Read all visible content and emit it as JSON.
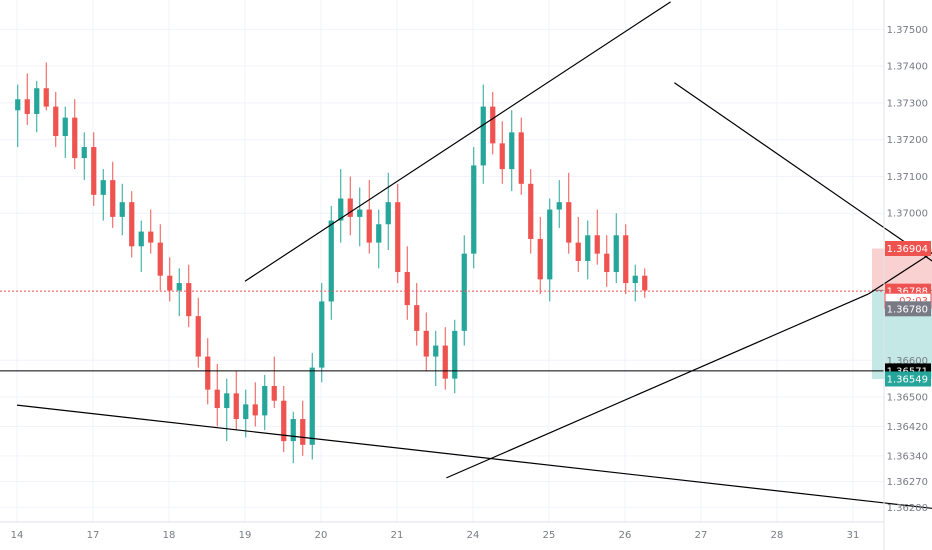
{
  "chart_data": {
    "type": "candlestick",
    "title": "",
    "grid": true,
    "colors": {
      "up": "#26a69a",
      "down": "#ef5350",
      "drawing": "#000000",
      "stop_zone": "#f8c9c8",
      "target_zone": "#b9e4e0",
      "price_line": "#ef5350",
      "axis_text": "#787b86"
    },
    "y_axis": {
      "side": "right",
      "range": [
        1.3616,
        1.3758
      ],
      "ticks": [
        "1.37500",
        "1.37400",
        "1.37300",
        "1.37200",
        "1.37100",
        "1.37000",
        "1.36600",
        "1.36500",
        "1.36420",
        "1.36340",
        "1.36270",
        "1.36200"
      ]
    },
    "x_axis": {
      "ticks": [
        "14",
        "17",
        "18",
        "19",
        "20",
        "21",
        "24",
        "25",
        "26",
        "27",
        "28",
        "31"
      ]
    },
    "price_tags": [
      {
        "label": "1.36904",
        "value": 1.36904,
        "bg": "#ef5350",
        "fg": "#ffffff"
      },
      {
        "label": "1.36788",
        "value": 1.36788,
        "bg": "#ef5350",
        "fg": "#ffffff"
      },
      {
        "label": "02:03",
        "value": 1.36762,
        "bg": "#ffffff",
        "fg": "#ef5350",
        "border": "#ef5350"
      },
      {
        "label": "1.36780",
        "value": 1.3674,
        "bg": "#787b86",
        "fg": "#ffffff"
      },
      {
        "label": "1.36571",
        "value": 1.36571,
        "bg": "#000000",
        "fg": "#ffffff"
      },
      {
        "label": "1.36549",
        "value": 1.36549,
        "bg": "#26a69a",
        "fg": "#ffffff"
      }
    ],
    "position": {
      "type": "short",
      "entry": 1.3679,
      "stop": 1.36904,
      "target": 1.36549,
      "start_date_index": 11.25,
      "end_date_index": 14.45
    },
    "horizontal_line": 1.36571,
    "current_price": 1.36788,
    "trendlines": [
      {
        "from": [
          3.0,
          1.36815
        ],
        "to": [
          8.6,
          1.37575
        ]
      },
      {
        "from": [
          5.65,
          1.3628
        ],
        "to": [
          11.2,
          1.3678
        ]
      },
      {
        "from": [
          11.2,
          1.3678
        ],
        "to": [
          14.0,
          1.37155
        ]
      },
      {
        "from": [
          8.65,
          1.37355
        ],
        "to": [
          13.98,
          1.36593
        ]
      },
      {
        "from": [
          0.0,
          1.36478
        ],
        "to": [
          12.35,
          1.3619
        ]
      }
    ],
    "series": [
      {
        "date": "14",
        "ohlc": [
          [
            1.3728,
            1.3735,
            1.3718,
            1.3731
          ],
          [
            1.3731,
            1.3738,
            1.3724,
            1.3727
          ],
          [
            1.3727,
            1.3736,
            1.3722,
            1.3734
          ],
          [
            1.3734,
            1.3741,
            1.3728,
            1.3729
          ],
          [
            1.3729,
            1.3733,
            1.3718,
            1.3721
          ],
          [
            1.3721,
            1.3729,
            1.3715,
            1.3726
          ],
          [
            1.3726,
            1.3731,
            1.3712,
            1.3715
          ],
          [
            1.3715,
            1.3722,
            1.3709,
            1.3718
          ]
        ]
      },
      {
        "date": "17",
        "ohlc": [
          [
            1.3718,
            1.3722,
            1.3702,
            1.3705
          ],
          [
            1.3705,
            1.3712,
            1.3698,
            1.3709
          ],
          [
            1.3709,
            1.3714,
            1.3696,
            1.3699
          ],
          [
            1.3699,
            1.3708,
            1.3694,
            1.3703
          ],
          [
            1.3703,
            1.3706,
            1.3688,
            1.3691
          ],
          [
            1.3691,
            1.3698,
            1.3684,
            1.3695
          ],
          [
            1.3695,
            1.3701,
            1.3689,
            1.3692
          ],
          [
            1.3692,
            1.3697,
            1.3679,
            1.3683
          ]
        ]
      },
      {
        "date": "18",
        "ohlc": [
          [
            1.3683,
            1.3688,
            1.3676,
            1.3679
          ],
          [
            1.3679,
            1.3685,
            1.3672,
            1.3681
          ],
          [
            1.3681,
            1.3686,
            1.3669,
            1.3672
          ],
          [
            1.3672,
            1.3677,
            1.3658,
            1.3661
          ],
          [
            1.3661,
            1.3666,
            1.3648,
            1.3652
          ],
          [
            1.3652,
            1.3659,
            1.3642,
            1.3647
          ],
          [
            1.3647,
            1.3655,
            1.3638,
            1.3651
          ],
          [
            1.3651,
            1.3657,
            1.3641,
            1.3644
          ]
        ]
      },
      {
        "date": "19",
        "ohlc": [
          [
            1.3644,
            1.3652,
            1.3639,
            1.3648
          ],
          [
            1.3648,
            1.3654,
            1.3642,
            1.3645
          ],
          [
            1.3645,
            1.3656,
            1.3641,
            1.3653
          ],
          [
            1.3653,
            1.3661,
            1.3647,
            1.3649
          ],
          [
            1.3649,
            1.3653,
            1.3635,
            1.3638
          ],
          [
            1.3638,
            1.3646,
            1.3632,
            1.3644
          ],
          [
            1.3644,
            1.3649,
            1.3634,
            1.3637
          ],
          [
            1.3637,
            1.3662,
            1.3633,
            1.3658
          ]
        ]
      },
      {
        "date": "20",
        "ohlc": [
          [
            1.3658,
            1.3681,
            1.3654,
            1.3676
          ],
          [
            1.3676,
            1.3702,
            1.3671,
            1.3698
          ],
          [
            1.3698,
            1.3712,
            1.3692,
            1.3704
          ],
          [
            1.3704,
            1.371,
            1.3694,
            1.3699
          ],
          [
            1.3699,
            1.3707,
            1.3691,
            1.3701
          ],
          [
            1.3701,
            1.3709,
            1.3689,
            1.3692
          ],
          [
            1.3692,
            1.3701,
            1.3685,
            1.3697
          ],
          [
            1.3697,
            1.3711,
            1.369,
            1.3703
          ]
        ]
      },
      {
        "date": "21",
        "ohlc": [
          [
            1.3703,
            1.3708,
            1.3681,
            1.3684
          ],
          [
            1.3684,
            1.3691,
            1.3671,
            1.3675
          ],
          [
            1.3675,
            1.3681,
            1.3664,
            1.3668
          ],
          [
            1.3668,
            1.3673,
            1.3657,
            1.3661
          ],
          [
            1.3661,
            1.3668,
            1.3653,
            1.3664
          ],
          [
            1.3664,
            1.3669,
            1.3652,
            1.3655
          ],
          [
            1.3655,
            1.3671,
            1.3651,
            1.3668
          ],
          [
            1.3668,
            1.3694,
            1.3664,
            1.3689
          ]
        ]
      },
      {
        "date": "24",
        "ohlc": [
          [
            1.3689,
            1.3718,
            1.3685,
            1.3713
          ],
          [
            1.3713,
            1.3735,
            1.3708,
            1.3729
          ],
          [
            1.3729,
            1.3733,
            1.3716,
            1.3719
          ],
          [
            1.3719,
            1.3725,
            1.3708,
            1.3712
          ],
          [
            1.3712,
            1.3728,
            1.3706,
            1.3722
          ],
          [
            1.3722,
            1.3726,
            1.3705,
            1.3708
          ],
          [
            1.3708,
            1.3712,
            1.3689,
            1.3693
          ],
          [
            1.3693,
            1.3699,
            1.3678,
            1.3682
          ]
        ]
      },
      {
        "date": "25",
        "ohlc": [
          [
            1.3682,
            1.3704,
            1.3676,
            1.3701
          ],
          [
            1.3701,
            1.3709,
            1.3696,
            1.3703
          ],
          [
            1.3703,
            1.3711,
            1.3689,
            1.3692
          ],
          [
            1.3692,
            1.3699,
            1.3684,
            1.3687
          ],
          [
            1.3687,
            1.3698,
            1.3682,
            1.3694
          ],
          [
            1.3694,
            1.3701,
            1.3686,
            1.3689
          ],
          [
            1.3689,
            1.3694,
            1.368,
            1.3684
          ],
          [
            1.3684,
            1.37,
            1.3681,
            1.3694
          ]
        ]
      },
      {
        "date": "26",
        "ohlc": [
          [
            1.3694,
            1.3697,
            1.3678,
            1.3681
          ],
          [
            1.3681,
            1.3686,
            1.3676,
            1.3683
          ],
          [
            1.3683,
            1.3685,
            1.3677,
            1.3679
          ]
        ]
      }
    ]
  }
}
